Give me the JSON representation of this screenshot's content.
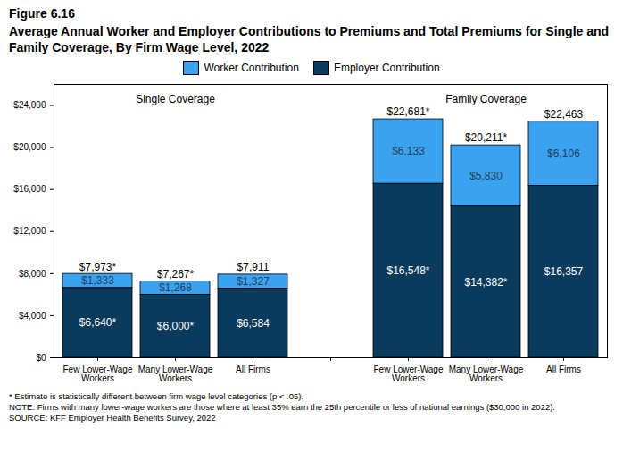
{
  "chart_data": {
    "type": "bar",
    "title": "Figure 6.16",
    "subtitle": "Average Annual Worker and Employer Contributions to Premiums and Total Premiums for Single and Family Coverage, By Firm Wage Level, 2022",
    "categories": [
      "Few Lower-Wage Workers",
      "Many Lower-Wage Workers",
      "All Firms",
      null,
      "Few Lower-Wage Workers",
      "Many Lower-Wage Workers",
      "All Firms"
    ],
    "series": [
      {
        "name": "Worker Contribution",
        "color": "#3aa2ee",
        "values": [
          1333,
          1268,
          1327,
          null,
          6133,
          5830,
          6106
        ],
        "value_labels": [
          "$1,333",
          "$1,268",
          "$1,327",
          null,
          "$6,133",
          "$5,830",
          "$6,106"
        ]
      },
      {
        "name": "Employer Contribution",
        "color": "#0a3a5c",
        "values": [
          6640,
          6000,
          6584,
          null,
          16548,
          14382,
          16357
        ],
        "value_labels": [
          "$6,640*",
          "$6,000*",
          "$6,584",
          null,
          "$16,548*",
          "$14,382*",
          "$16,357"
        ]
      }
    ],
    "totals": {
      "values": [
        7973,
        7267,
        7911,
        null,
        22681,
        20211,
        22463
      ],
      "value_labels": [
        "$7,973*",
        "$7,267*",
        "$7,911",
        null,
        "$22,681*",
        "$20,211*",
        "$22,463"
      ]
    },
    "annotations": [
      "Single Coverage",
      "Family Coverage"
    ],
    "notes": [
      "* Estimate is statistically different between firm wage level categories (p < .05).",
      "NOTE: Firms with many lower-wage workers are those where at least 35% earn the 25th percentile or less of national earnings ($30,000 in 2022).",
      "SOURCE: KFF Employer Health Benefits Survey, 2022"
    ],
    "ylim": [
      0,
      26000
    ],
    "yticks": [
      {
        "value": 0,
        "label": "$0"
      },
      {
        "value": 4000,
        "label": "$4,000"
      },
      {
        "value": 8000,
        "label": "$8,000"
      },
      {
        "value": 12000,
        "label": "$12,000"
      },
      {
        "value": 16000,
        "label": "$16,000"
      },
      {
        "value": 20000,
        "label": "$20,000"
      },
      {
        "value": 24000,
        "label": "$24,000"
      }
    ],
    "stacked": true,
    "data_labels": true,
    "legend": "top",
    "grid": false
  }
}
